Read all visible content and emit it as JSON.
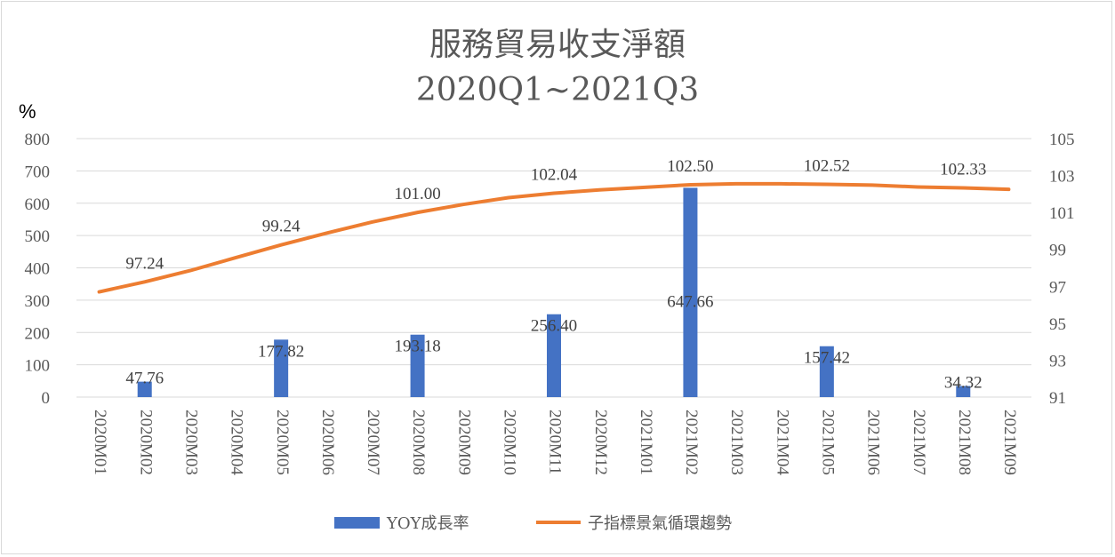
{
  "chart_data": {
    "type": "bar+line",
    "title_line1": "服務貿易收支淨額",
    "title_line2": "2020Q1~2021Q3",
    "y_left_unit": "%",
    "y_left_range": [
      0,
      800
    ],
    "y_left_ticks": [
      "0",
      "100",
      "200",
      "300",
      "400",
      "500",
      "600",
      "700",
      "800"
    ],
    "y_right_range": [
      91,
      105
    ],
    "y_right_ticks": [
      "91",
      "93",
      "95",
      "97",
      "99",
      "101",
      "103",
      "105"
    ],
    "categories": [
      "2020M01",
      "2020M02",
      "2020M03",
      "2020M04",
      "2020M05",
      "2020M06",
      "2020M07",
      "2020M08",
      "2020M09",
      "2020M10",
      "2020M11",
      "2020M12",
      "2021M01",
      "2021M02",
      "2021M03",
      "2021M04",
      "2021M05",
      "2021M06",
      "2021M07",
      "2021M08",
      "2021M09"
    ],
    "series": [
      {
        "name": "YOY成長率",
        "type": "bar",
        "axis": "left",
        "color": "#4472C4",
        "values": [
          null,
          47.76,
          null,
          null,
          177.82,
          null,
          null,
          193.18,
          null,
          null,
          256.4,
          null,
          null,
          647.66,
          null,
          null,
          157.42,
          null,
          null,
          34.32,
          null
        ],
        "labels": [
          null,
          "47.76",
          null,
          null,
          "177.82",
          null,
          null,
          "193.18",
          null,
          null,
          "256.40",
          null,
          null,
          "647.66",
          null,
          null,
          "157.42",
          null,
          null,
          "34.32",
          null
        ]
      },
      {
        "name": "子指標景氣循環趨勢",
        "type": "line",
        "axis": "right",
        "color": "#ED7D31",
        "values": [
          96.7,
          97.24,
          97.85,
          98.55,
          99.24,
          99.88,
          100.48,
          101.0,
          101.43,
          101.8,
          102.04,
          102.22,
          102.36,
          102.5,
          102.55,
          102.55,
          102.52,
          102.48,
          102.38,
          102.33,
          102.25
        ],
        "labels": [
          null,
          "97.24",
          null,
          null,
          "99.24",
          null,
          null,
          "101.00",
          null,
          null,
          "102.04",
          null,
          null,
          "102.50",
          null,
          null,
          "102.52",
          null,
          null,
          "102.33",
          null
        ]
      }
    ],
    "grid": true,
    "legend_position": "bottom"
  }
}
